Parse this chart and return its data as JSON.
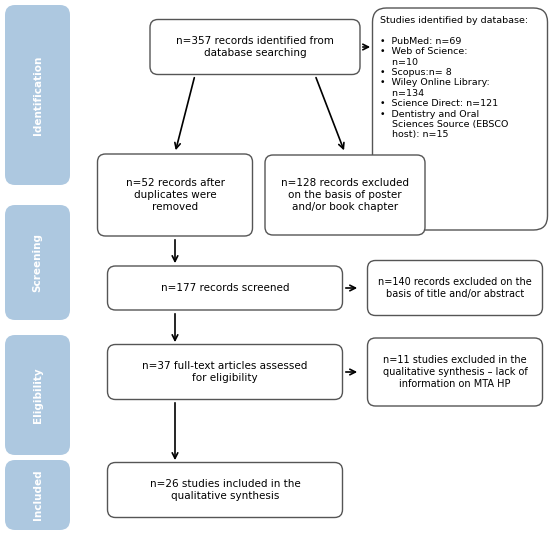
{
  "bg_color": "#ffffff",
  "sidebar_color": "#adc8e0",
  "sidebar_labels": [
    "Identification",
    "Screening",
    "Eligibility",
    "Included"
  ],
  "box_texts": {
    "top_center": "n=357 records identified from\ndatabase searching",
    "mid_left": "n=52 records after\nduplicates were\nremoved",
    "mid_right": "n=128 records excluded\non the basis of poster\nand/or book chapter",
    "screen": "n=177 records screened",
    "screen_excl": "n=140 records excluded on the\nbasis of title and/or abstract",
    "eligibility": "n=37 full-text articles assessed\nfor eligibility",
    "eligibility_excl": "n=11 studies excluded in the\nqualitative synthesis – lack of\ninformation on MTA HP",
    "included": "n=26 studies included in the\nqualitative synthesis",
    "database": "Studies identified by database:\n\n•  PubMed: n=69\n•  Web of Science:\n    n=10\n•  Scopus:n= 8\n•  Wiley Online Library:\n    n=134\n•  Science Direct: n=121\n•  Dentistry and Oral\n    Sciences Source (EBSCO\n    host): n=15"
  }
}
